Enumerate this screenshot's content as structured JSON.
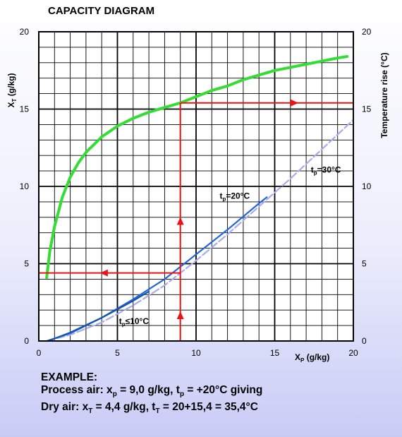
{
  "chart_data": {
    "type": "line",
    "title": "CAPACITY DIAGRAM",
    "xlabel": "X_P (g/kg)",
    "xlabel_main": "X",
    "xlabel_sub": "P",
    "xlabel_unit": " (g/kg)",
    "ylabel_left_main": "X",
    "ylabel_left_sub": "T",
    "ylabel_left_unit": " (g/kg)",
    "ylabel_right": "Temperature rise (°C)",
    "xlim": [
      0,
      20
    ],
    "ylim": [
      0,
      20
    ],
    "grid": true,
    "x_ticks": [
      "0",
      "5",
      "10",
      "15",
      "20"
    ],
    "y_ticks": [
      "0",
      "5",
      "10",
      "15",
      "20"
    ],
    "y_ticks_right": [
      "0",
      "5",
      "10",
      "15",
      "20"
    ],
    "series": [
      {
        "role": "xT-curve",
        "color": "#33dd33",
        "x": [
          0.5,
          0.7,
          1,
          1.5,
          2,
          2.5,
          3,
          4,
          5,
          6,
          7,
          8,
          9,
          10,
          11,
          12,
          13,
          14,
          15,
          16,
          17,
          18,
          19,
          19.6
        ],
        "values": [
          4.1,
          5.8,
          7.4,
          9.3,
          10.6,
          11.5,
          12.2,
          13.2,
          13.9,
          14.4,
          14.8,
          15.1,
          15.4,
          15.8,
          16.2,
          16.5,
          16.9,
          17.2,
          17.5,
          17.7,
          17.9,
          18.1,
          18.3,
          18.4
        ]
      },
      {
        "role": "tp-30",
        "label_main": "t",
        "label_sub": "p",
        "label_rest": "=30°C",
        "label_x": 17.3,
        "label_y": 10.9,
        "color": "#aaaaee",
        "x": [
          0.5,
          2,
          4,
          6,
          8,
          10,
          12,
          14,
          16,
          18,
          20
        ],
        "values": [
          0,
          0.4,
          1.2,
          2.3,
          3.6,
          5.2,
          6.9,
          8.7,
          10.5,
          12.4,
          14.3
        ]
      },
      {
        "role": "tp-20",
        "label_main": "t",
        "label_sub": "p",
        "label_rest": "=20°C",
        "label_x": 11.5,
        "label_y": 9.2,
        "color": "#2266dd",
        "x": [
          0.5,
          2,
          4,
          6,
          8,
          10,
          12,
          14,
          14.5
        ],
        "values": [
          0,
          0.5,
          1.5,
          2.7,
          4.0,
          5.6,
          7.2,
          8.9,
          9.3
        ]
      },
      {
        "role": "tp-10",
        "label_main": "t",
        "label_sub": "p",
        "label_rest": "≤10°C",
        "label_x": 5.1,
        "label_y": 1.1,
        "color": "#1155aa",
        "x": [
          0.6,
          2,
          4,
          6,
          7
        ],
        "values": [
          0,
          0.55,
          1.5,
          2.6,
          3.2
        ]
      }
    ],
    "example_lines": {
      "x_p": 9.0,
      "x_T": 4.4,
      "temp_rise": 15.4,
      "color": "#ee1111"
    }
  },
  "example": {
    "heading": "EXAMPLE:",
    "line1_a": "Process air: x",
    "line1_sub1": "p",
    "line1_b": " = 9,0 g/kg, t",
    "line1_sub2": "p",
    "line1_c": " = +20°C giving",
    "line2_a": "Dry air: x",
    "line2_sub1": "T",
    "line2_b": " = 4,4 g/kg, t",
    "line2_sub2": "T",
    "line2_c": " = 20+15,4 = 35,4°C"
  }
}
